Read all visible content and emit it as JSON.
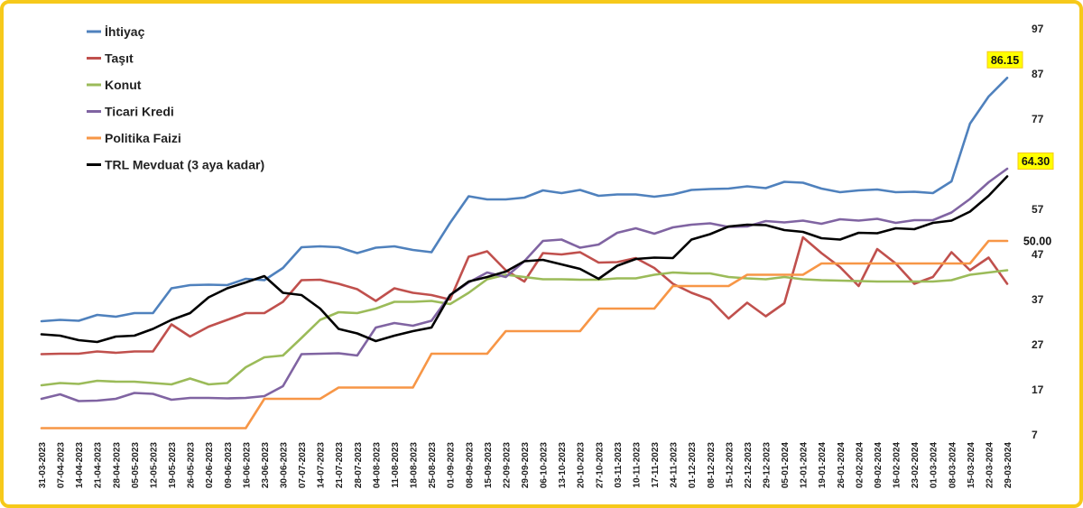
{
  "chart_data": {
    "type": "line",
    "title": "",
    "xlabel": "",
    "ylabel": "",
    "ylim": [
      7,
      97
    ],
    "yticks": [
      7,
      17,
      27,
      37,
      47,
      57,
      67,
      77,
      87,
      97
    ],
    "grid": false,
    "legend_position": "top-left",
    "categories": [
      "31-03-2023",
      "07-04-2023",
      "14-04-2023",
      "21-04-2023",
      "28-04-2023",
      "05-05-2023",
      "12-05-2023",
      "19-05-2023",
      "26-05-2023",
      "02-06-2023",
      "09-06-2023",
      "16-06-2023",
      "23-06-2023",
      "30-06-2023",
      "07-07-2023",
      "14-07-2023",
      "21-07-2023",
      "28-07-2023",
      "04-08-2023",
      "11-08-2023",
      "18-08-2023",
      "25-08-2023",
      "01-09-2023",
      "08-09-2023",
      "15-09-2023",
      "22-09-2023",
      "29-09-2023",
      "06-10-2023",
      "13-10-2023",
      "20-10-2023",
      "27-10-2023",
      "03-11-2023",
      "10-11-2023",
      "17-11-2023",
      "24-11-2023",
      "01-12-2023",
      "08-12-2023",
      "15-12-2023",
      "22-12-2023",
      "29-12-2023",
      "05-01-2024",
      "12-01-2024",
      "19-01-2024",
      "26-01-2024",
      "02-02-2024",
      "09-02-2024",
      "16-02-2024",
      "23-02-2024",
      "01-03-2024",
      "08-03-2024",
      "15-03-2024",
      "22-03-2024",
      "29-03-2024"
    ],
    "x_tick_labels": [
      "31-03-2023",
      "07-04-2023",
      "14-04-2023",
      "21-04-2023",
      "28-04-2023",
      "05-05-2023",
      "12-05-2023",
      "19-05-2023",
      "26-05-2023",
      "02-06-2023",
      "09-06-2023",
      "16-06-2023",
      "23-06-2023",
      "30-06-2023",
      "07-07-2023",
      "14-07-2023",
      "21-07-2023",
      "28-07-2023",
      "04-08-2023",
      "11-08-2023",
      "18-08-2023",
      "25-08-2023",
      "01-09-2023",
      "08-09-2023",
      "15-09-2023",
      "22-09-2023",
      "29-09-2023",
      "06-10-2023",
      "13-10-2023",
      "20-10-2023",
      "27-10-2023",
      "03-11-2023",
      "10-11-2023",
      "17-11-2023",
      "24-11-2023",
      "01-12-2023",
      "08-12-2023",
      "15-12-2023",
      "22-12-2023",
      "29-12-2023",
      "05-01-2024",
      "12-01-2024",
      "19-01-2024",
      "26-01-2024",
      "02-02-2024",
      "09-02-2024",
      "16-02-2024",
      "23-02-2024",
      "01-03-2024",
      "08-03-2024",
      "15-03-2024",
      "22-03-2024",
      "29-03-2024"
    ],
    "series": [
      {
        "name": "İhtiyaç",
        "color": "#4f81bd",
        "values": [
          32.2,
          32.5,
          32.3,
          33.6,
          33.2,
          34.0,
          34.0,
          39.5,
          40.2,
          40.3,
          40.2,
          41.6,
          41.3,
          44.0,
          48.6,
          48.8,
          48.6,
          47.3,
          48.5,
          48.8,
          48.0,
          47.5,
          54.0,
          59.9,
          59.2,
          59.2,
          59.6,
          61.2,
          60.6,
          61.3,
          60.0,
          60.3,
          60.3,
          59.8,
          60.3,
          61.3,
          61.5,
          61.6,
          62.1,
          61.7,
          63.1,
          62.9,
          61.6,
          60.8,
          61.2,
          61.4,
          60.8,
          60.9,
          60.6,
          63.2,
          76.0,
          82.0,
          86.15
        ]
      },
      {
        "name": "Taşıt",
        "color": "#c0504d",
        "values": [
          24.9,
          25.0,
          25.0,
          25.5,
          25.2,
          25.5,
          25.5,
          31.5,
          28.8,
          31.0,
          32.5,
          34.0,
          34.0,
          36.5,
          41.3,
          41.4,
          40.5,
          39.3,
          36.7,
          39.5,
          38.5,
          38.0,
          37.0,
          46.5,
          47.7,
          43.5,
          41.0,
          47.3,
          47.0,
          47.5,
          45.2,
          45.3,
          46.2,
          44.0,
          40.5,
          38.5,
          37.0,
          32.8,
          36.3,
          33.3,
          36.2,
          50.8,
          47.3,
          44.2,
          40.0,
          48.2,
          45.0,
          40.5,
          42.0,
          47.5,
          43.5,
          46.3,
          40.5
        ]
      },
      {
        "name": "Konut",
        "color": "#9bbb59",
        "values": [
          18.0,
          18.5,
          18.3,
          19.0,
          18.8,
          18.8,
          18.5,
          18.2,
          19.5,
          18.2,
          18.5,
          22.0,
          24.2,
          24.6,
          28.5,
          32.5,
          34.2,
          34.0,
          35.0,
          36.5,
          36.5,
          36.7,
          36.0,
          38.5,
          41.5,
          42.5,
          42.0,
          41.5,
          41.5,
          41.4,
          41.4,
          41.7,
          41.7,
          42.5,
          43.0,
          42.8,
          42.8,
          42.0,
          41.7,
          41.5,
          42.0,
          41.5,
          41.3,
          41.2,
          41.1,
          41.0,
          41.0,
          41.0,
          41.0,
          41.3,
          42.5,
          43.0,
          43.5
        ]
      },
      {
        "name": "Ticari Kredi",
        "color": "#8064a2",
        "values": [
          15.0,
          16.0,
          14.5,
          14.6,
          15.0,
          16.3,
          16.1,
          14.8,
          15.2,
          15.2,
          15.1,
          15.2,
          15.6,
          17.8,
          24.9,
          25.0,
          25.1,
          24.6,
          30.8,
          31.8,
          31.2,
          32.3,
          38.0,
          40.8,
          43.0,
          42.0,
          45.5,
          50.0,
          50.3,
          48.5,
          49.2,
          51.8,
          52.8,
          51.6,
          53.0,
          53.6,
          53.9,
          53.1,
          53.2,
          54.4,
          54.1,
          54.5,
          53.8,
          54.8,
          54.5,
          54.9,
          54.0,
          54.6,
          54.6,
          56.3,
          59.3,
          63.0,
          66.0
        ]
      },
      {
        "name": "Politika Faizi",
        "color": "#f79646",
        "values": [
          8.5,
          8.5,
          8.5,
          8.5,
          8.5,
          8.5,
          8.5,
          8.5,
          8.5,
          8.5,
          8.5,
          8.5,
          15.0,
          15.0,
          15.0,
          15.0,
          17.5,
          17.5,
          17.5,
          17.5,
          17.5,
          25.0,
          25.0,
          25.0,
          25.0,
          30.0,
          30.0,
          30.0,
          30.0,
          30.0,
          35.0,
          35.0,
          35.0,
          35.0,
          40.0,
          40.0,
          40.0,
          40.0,
          42.5,
          42.5,
          42.5,
          42.5,
          45.0,
          45.0,
          45.0,
          45.0,
          45.0,
          45.0,
          45.0,
          45.0,
          45.0,
          50.0,
          50.0
        ]
      },
      {
        "name": "TRL Mevduat (3 aya kadar)",
        "color": "#000000",
        "values": [
          29.3,
          29.0,
          28.0,
          27.6,
          28.8,
          29.0,
          30.5,
          32.5,
          34.0,
          37.5,
          39.5,
          40.8,
          42.2,
          38.5,
          38.0,
          35.0,
          30.5,
          29.5,
          27.8,
          29.0,
          30.0,
          30.8,
          38.0,
          41.0,
          42.0,
          43.2,
          45.5,
          45.8,
          44.8,
          43.8,
          41.6,
          44.5,
          46.0,
          46.3,
          46.2,
          50.3,
          51.5,
          53.2,
          53.6,
          53.5,
          52.4,
          52.0,
          50.6,
          50.3,
          51.8,
          51.7,
          52.8,
          52.6,
          54.0,
          54.5,
          56.5,
          60.0,
          64.3
        ]
      }
    ],
    "callouts": [
      {
        "series": "İhtiyaç",
        "label": "86.15",
        "style": "highlight"
      },
      {
        "series": "TRL Mevduat (3 aya kadar)",
        "label": "64.30",
        "style": "highlight"
      },
      {
        "series": "Politika Faizi",
        "label": "50.00",
        "style": "plain"
      }
    ]
  }
}
